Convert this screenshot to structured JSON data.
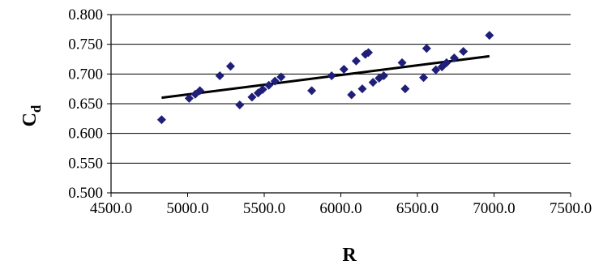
{
  "chart_data": {
    "type": "scatter",
    "title": "",
    "xlabel": "R",
    "ylabel": {
      "main": "C",
      "sub": "d"
    },
    "xlim": [
      4500,
      7500
    ],
    "ylim": [
      0.5,
      0.8
    ],
    "xticks": [
      4500,
      5000,
      5500,
      6000,
      6500,
      7000,
      7500
    ],
    "xtick_labels": [
      "4500.0",
      "5000.0",
      "5500.0",
      "6000.0",
      "6500.0",
      "7000.0",
      "7500.0"
    ],
    "yticks": [
      0.5,
      0.55,
      0.6,
      0.65,
      0.7,
      0.75,
      0.8
    ],
    "ytick_labels": [
      "0.500",
      "0.550",
      "0.600",
      "0.650",
      "0.700",
      "0.750",
      "0.800"
    ],
    "grid": "horizontal",
    "legend": "none",
    "marker_color": "#1f1f7a",
    "trendline_color": "#000000",
    "series": [
      {
        "points": [
          [
            4830,
            0.623
          ],
          [
            5010,
            0.659
          ],
          [
            5050,
            0.666
          ],
          [
            5080,
            0.672
          ],
          [
            5210,
            0.697
          ],
          [
            5280,
            0.713
          ],
          [
            5340,
            0.648
          ],
          [
            5420,
            0.661
          ],
          [
            5460,
            0.668
          ],
          [
            5490,
            0.674
          ],
          [
            5530,
            0.681
          ],
          [
            5570,
            0.688
          ],
          [
            5610,
            0.695
          ],
          [
            5810,
            0.672
          ],
          [
            5940,
            0.697
          ],
          [
            6020,
            0.708
          ],
          [
            6070,
            0.665
          ],
          [
            6100,
            0.722
          ],
          [
            6140,
            0.675
          ],
          [
            6160,
            0.733
          ],
          [
            6180,
            0.736
          ],
          [
            6210,
            0.686
          ],
          [
            6250,
            0.693
          ],
          [
            6280,
            0.697
          ],
          [
            6400,
            0.719
          ],
          [
            6420,
            0.675
          ],
          [
            6540,
            0.694
          ],
          [
            6560,
            0.743
          ],
          [
            6620,
            0.707
          ],
          [
            6660,
            0.712
          ],
          [
            6690,
            0.719
          ],
          [
            6740,
            0.727
          ],
          [
            6800,
            0.738
          ],
          [
            6970,
            0.765
          ]
        ],
        "trendline": [
          [
            4830,
            0.66
          ],
          [
            6970,
            0.73
          ]
        ]
      }
    ]
  }
}
